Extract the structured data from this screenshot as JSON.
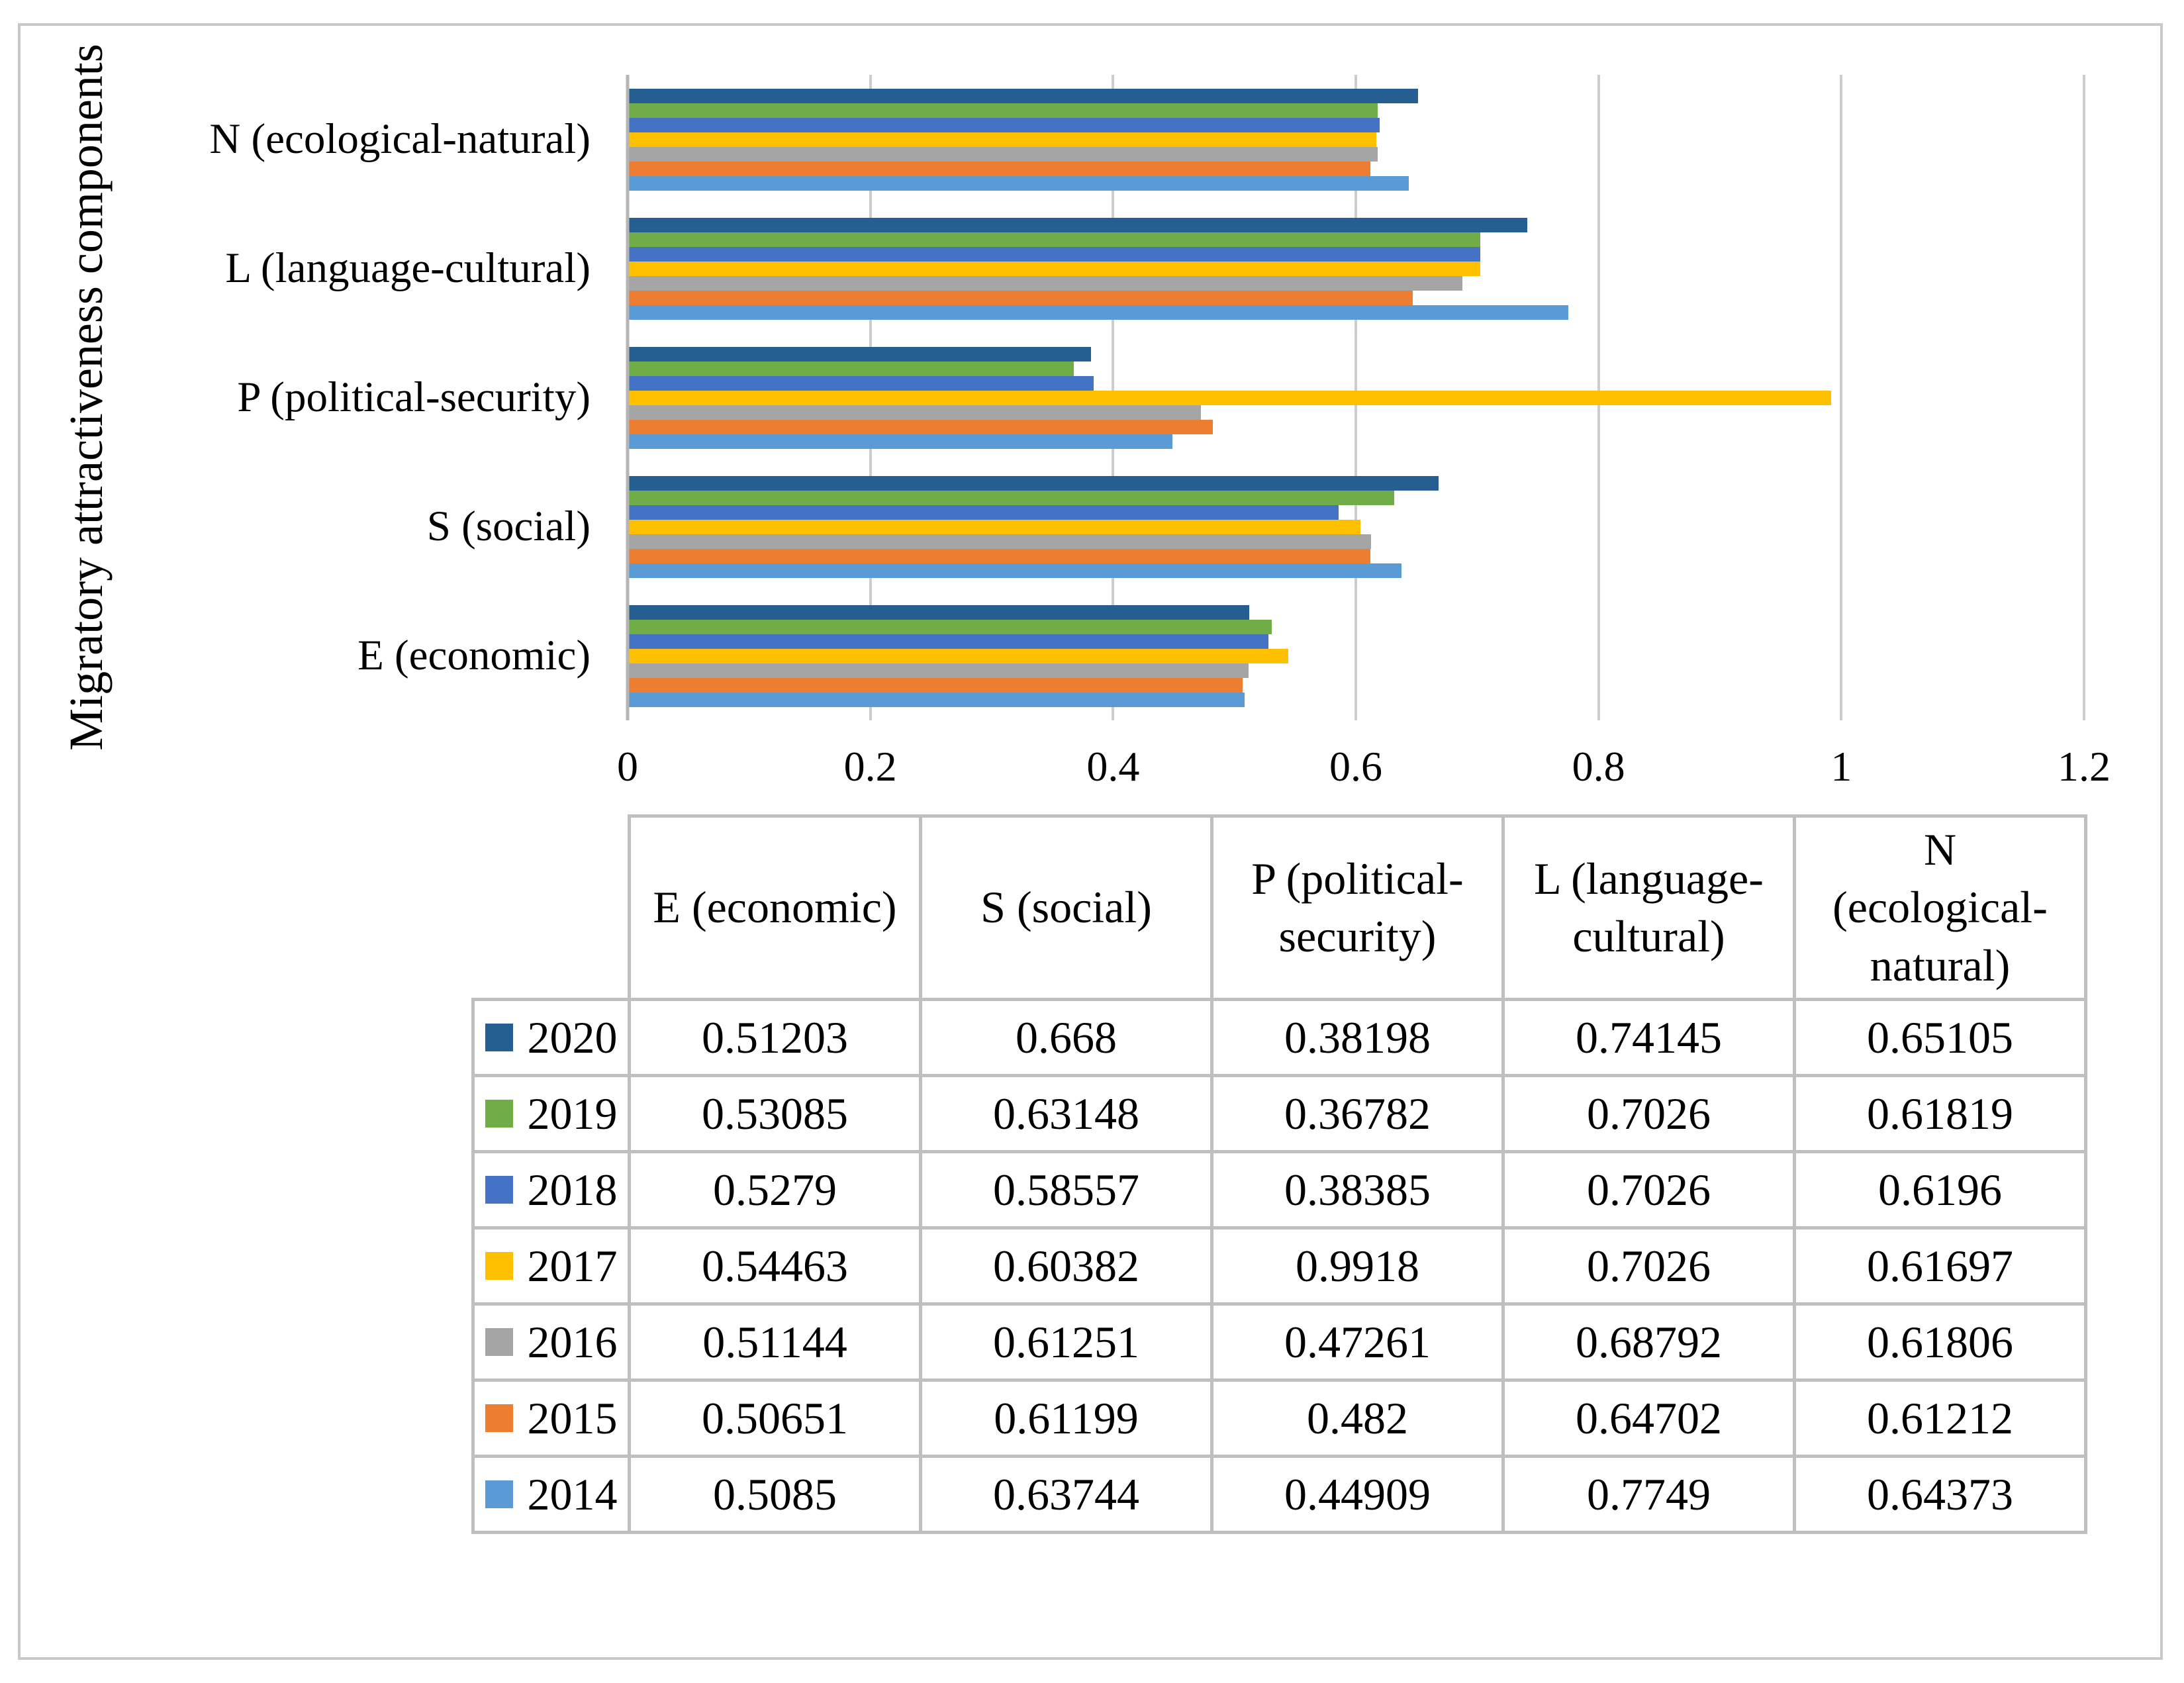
{
  "chart_data": {
    "type": "bar",
    "orientation": "horizontal",
    "y_axis_title": "Migratory attractiveness components",
    "x_ticks": [
      "0",
      "0.2",
      "0.4",
      "0.6",
      "0.8",
      "1",
      "1.2"
    ],
    "xlim": [
      0,
      1.2
    ],
    "grid": true,
    "legend_position": "table-below",
    "categories": [
      {
        "key": "N",
        "label": "N (ecological-natural)"
      },
      {
        "key": "L",
        "label": "L (language-cultural)"
      },
      {
        "key": "P",
        "label": "P (political-security)"
      },
      {
        "key": "S",
        "label": "S (social)"
      },
      {
        "key": "E",
        "label": "E (economic)"
      }
    ],
    "series": [
      {
        "name": "2020",
        "color": "#255E91",
        "values": {
          "E": 0.51203,
          "S": 0.668,
          "P": 0.38198,
          "L": 0.74145,
          "N": 0.65105
        }
      },
      {
        "name": "2019",
        "color": "#70AD47",
        "values": {
          "E": 0.53085,
          "S": 0.63148,
          "P": 0.36782,
          "L": 0.7026,
          "N": 0.61819
        }
      },
      {
        "name": "2018",
        "color": "#4472C4",
        "values": {
          "E": 0.5279,
          "S": 0.58557,
          "P": 0.38385,
          "L": 0.7026,
          "N": 0.6196
        }
      },
      {
        "name": "2017",
        "color": "#FFC000",
        "values": {
          "E": 0.54463,
          "S": 0.60382,
          "P": 0.9918,
          "L": 0.7026,
          "N": 0.61697
        }
      },
      {
        "name": "2016",
        "color": "#A5A5A5",
        "values": {
          "E": 0.51144,
          "S": 0.61251,
          "P": 0.47261,
          "L": 0.68792,
          "N": 0.61806
        }
      },
      {
        "name": "2015",
        "color": "#ED7D31",
        "values": {
          "E": 0.50651,
          "S": 0.61199,
          "P": 0.482,
          "L": 0.64702,
          "N": 0.61212
        }
      },
      {
        "name": "2014",
        "color": "#5B9BD5",
        "values": {
          "E": 0.5085,
          "S": 0.63744,
          "P": 0.44909,
          "L": 0.7749,
          "N": 0.64373
        }
      }
    ]
  },
  "table": {
    "column_headers": [
      "E (economic)",
      "S (social)",
      "P (political-\nsecurity)",
      "L (language-\ncultural)",
      "N\n(ecological-\nnatural)"
    ],
    "rows": [
      {
        "year": "2020",
        "swatch_color": "#255E91",
        "values": [
          "0.51203",
          "0.668",
          "0.38198",
          "0.74145",
          "0.65105"
        ]
      },
      {
        "year": "2019",
        "swatch_color": "#70AD47",
        "values": [
          "0.53085",
          "0.63148",
          "0.36782",
          "0.7026",
          "0.61819"
        ]
      },
      {
        "year": "2018",
        "swatch_color": "#4472C4",
        "values": [
          "0.5279",
          "0.58557",
          "0.38385",
          "0.7026",
          "0.6196"
        ]
      },
      {
        "year": "2017",
        "swatch_color": "#FFC000",
        "values": [
          "0.54463",
          "0.60382",
          "0.9918",
          "0.7026",
          "0.61697"
        ]
      },
      {
        "year": "2016",
        "swatch_color": "#A5A5A5",
        "values": [
          "0.51144",
          "0.61251",
          "0.47261",
          "0.68792",
          "0.61806"
        ]
      },
      {
        "year": "2015",
        "swatch_color": "#ED7D31",
        "values": [
          "0.50651",
          "0.61199",
          "0.482",
          "0.64702",
          "0.61212"
        ]
      },
      {
        "year": "2014",
        "swatch_color": "#5B9BD5",
        "values": [
          "0.5085",
          "0.63744",
          "0.44909",
          "0.7749",
          "0.64373"
        ]
      }
    ]
  },
  "colors": {
    "grid_line": "#CDCDCD",
    "axis_line": "#B5B5B5",
    "table_border": "#BFBFBF",
    "frame_border": "#C8C8C8"
  }
}
